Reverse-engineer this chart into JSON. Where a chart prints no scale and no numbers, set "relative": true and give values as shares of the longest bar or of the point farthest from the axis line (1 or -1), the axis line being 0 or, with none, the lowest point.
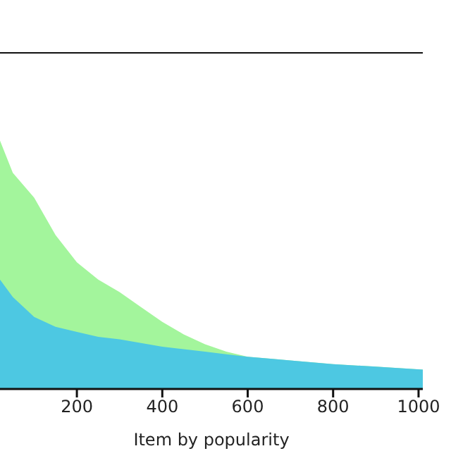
{
  "chart_data": {
    "type": "area",
    "xlabel": "Item by popularity",
    "relative": true,
    "xlim": [
      20,
      1010
    ],
    "xticks": [
      200,
      400,
      600,
      800,
      1000
    ],
    "legend": false,
    "grid": false,
    "series": [
      {
        "color": "#a3f59c",
        "x": [
          20,
          50,
          100,
          150,
          200,
          250,
          300,
          350,
          400,
          450,
          500,
          550,
          600,
          700,
          800,
          900,
          1010
        ],
        "values": [
          1.0,
          0.87,
          0.77,
          0.62,
          0.51,
          0.44,
          0.39,
          0.33,
          0.27,
          0.22,
          0.18,
          0.15,
          0.13,
          0.115,
          0.1,
          0.09,
          0.078
        ]
      },
      {
        "color": "#4dc8e2",
        "x": [
          20,
          50,
          100,
          150,
          200,
          250,
          300,
          350,
          400,
          450,
          500,
          550,
          600,
          700,
          800,
          900,
          1010
        ],
        "values": [
          0.44,
          0.37,
          0.29,
          0.25,
          0.23,
          0.21,
          0.2,
          0.185,
          0.17,
          0.16,
          0.15,
          0.14,
          0.13,
          0.115,
          0.1,
          0.09,
          0.078
        ]
      }
    ]
  }
}
